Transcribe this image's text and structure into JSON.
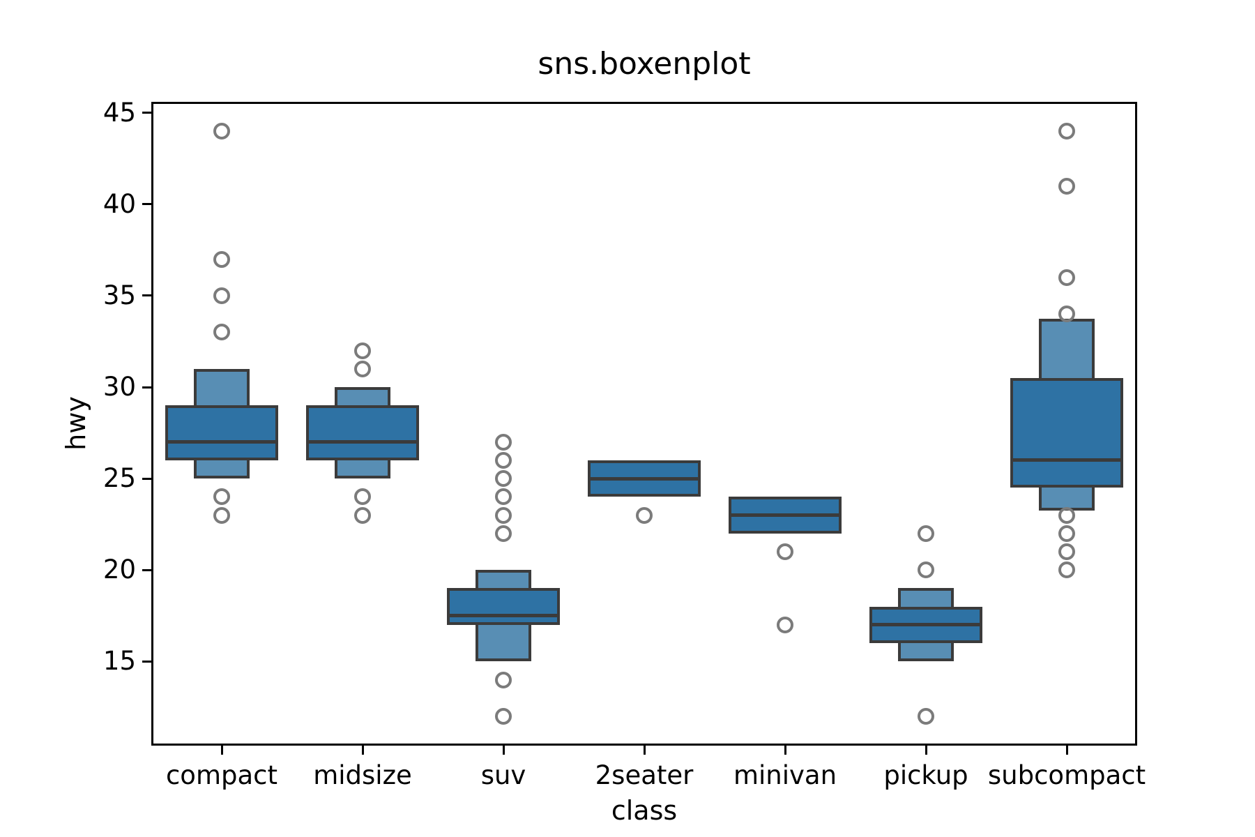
{
  "title": "sns.boxenplot",
  "chart_data": {
    "type": "boxen",
    "title": "sns.boxenplot",
    "xlabel": "class",
    "ylabel": "hwy",
    "ylim": [
      10.4,
      45.6
    ],
    "yticks": [
      15,
      20,
      25,
      30,
      35,
      40,
      45
    ],
    "grid": false,
    "legend": "none",
    "flier_marker": "open-circle",
    "categories": [
      "compact",
      "midsize",
      "suv",
      "2seater",
      "minivan",
      "pickup",
      "subcompact"
    ],
    "boxes": [
      {
        "category": "compact",
        "median": 27,
        "levels": [
          {
            "lo": 25,
            "hi": 31,
            "width": 0.4,
            "shade": "light"
          },
          {
            "lo": 26,
            "hi": 29,
            "width": 0.8,
            "shade": "dark"
          }
        ],
        "fliers_high": [
          33,
          35,
          37,
          44
        ],
        "fliers_low": [
          24,
          23
        ]
      },
      {
        "category": "midsize",
        "median": 27,
        "levels": [
          {
            "lo": 25,
            "hi": 30,
            "width": 0.4,
            "shade": "light"
          },
          {
            "lo": 26,
            "hi": 29,
            "width": 0.8,
            "shade": "dark"
          }
        ],
        "fliers_high": [
          31,
          32
        ],
        "fliers_low": [
          24,
          23
        ]
      },
      {
        "category": "suv",
        "median": 17.5,
        "levels": [
          {
            "lo": 15,
            "hi": 20,
            "width": 0.4,
            "shade": "light"
          },
          {
            "lo": 17,
            "hi": 19,
            "width": 0.8,
            "shade": "dark"
          }
        ],
        "fliers_high": [
          22,
          23,
          24,
          25,
          26,
          27
        ],
        "fliers_low": [
          14,
          12
        ]
      },
      {
        "category": "2seater",
        "median": 25,
        "levels": [
          {
            "lo": 24,
            "hi": 26,
            "width": 0.8,
            "shade": "dark"
          }
        ],
        "fliers_high": [],
        "fliers_low": [
          23
        ]
      },
      {
        "category": "minivan",
        "median": 23,
        "levels": [
          {
            "lo": 22,
            "hi": 24,
            "width": 0.8,
            "shade": "dark"
          }
        ],
        "fliers_high": [],
        "fliers_low": [
          21,
          17
        ]
      },
      {
        "category": "pickup",
        "median": 17,
        "levels": [
          {
            "lo": 15,
            "hi": 19,
            "width": 0.4,
            "shade": "light"
          },
          {
            "lo": 16,
            "hi": 18,
            "width": 0.8,
            "shade": "dark"
          }
        ],
        "fliers_high": [
          20,
          22
        ],
        "fliers_low": [
          12
        ]
      },
      {
        "category": "subcompact",
        "median": 26,
        "levels": [
          {
            "lo": 23.25,
            "hi": 33.75,
            "width": 0.4,
            "shade": "light"
          },
          {
            "lo": 24.5,
            "hi": 30.5,
            "width": 0.8,
            "shade": "dark"
          }
        ],
        "fliers_high": [
          34,
          36,
          41,
          44
        ],
        "fliers_low": [
          23,
          22,
          21,
          20
        ]
      }
    ],
    "colors": {
      "box_dark": "#2e72a4",
      "box_light": "#588eb4",
      "box_edge": "#3b3b3b",
      "median_line": "#3b3b3b",
      "flier_edge": "#7b7b7b",
      "axis": "#000000",
      "text": "#000000",
      "background": "#ffffff"
    }
  }
}
